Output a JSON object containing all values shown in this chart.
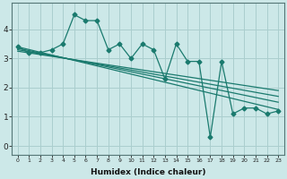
{
  "xlabel": "Humidex (Indice chaleur)",
  "bg_color": "#cce8e8",
  "line_color": "#1a7a6e",
  "grid_color": "#aacece",
  "xlim": [
    -0.5,
    23.5
  ],
  "ylim": [
    -0.3,
    4.9
  ],
  "xticks": [
    0,
    1,
    2,
    3,
    4,
    5,
    6,
    7,
    8,
    9,
    10,
    11,
    12,
    13,
    14,
    15,
    16,
    17,
    18,
    19,
    20,
    21,
    22,
    23
  ],
  "yticks": [
    0,
    1,
    2,
    3,
    4
  ],
  "line1_x": [
    0,
    1,
    2,
    3,
    4,
    5,
    6,
    7,
    8,
    9,
    10,
    11,
    12,
    13,
    14,
    15,
    16,
    17,
    18,
    19,
    20,
    21,
    22,
    23
  ],
  "line1_y": [
    3.4,
    3.2,
    3.2,
    3.3,
    3.5,
    4.5,
    4.3,
    4.3,
    3.3,
    3.5,
    3.0,
    3.5,
    3.3,
    2.3,
    3.5,
    2.9,
    2.9,
    0.3,
    2.9,
    1.1,
    1.3,
    1.3,
    1.1,
    1.2
  ],
  "trend_lines": [
    {
      "x0": 0.0,
      "y0": 3.4,
      "x1": 23.0,
      "y1": 1.25
    },
    {
      "x0": 0.0,
      "y0": 3.35,
      "x1": 23.0,
      "y1": 1.5
    },
    {
      "x0": 0.0,
      "y0": 3.3,
      "x1": 23.0,
      "y1": 1.7
    },
    {
      "x0": 0.0,
      "y0": 3.25,
      "x1": 23.0,
      "y1": 1.9
    }
  ]
}
